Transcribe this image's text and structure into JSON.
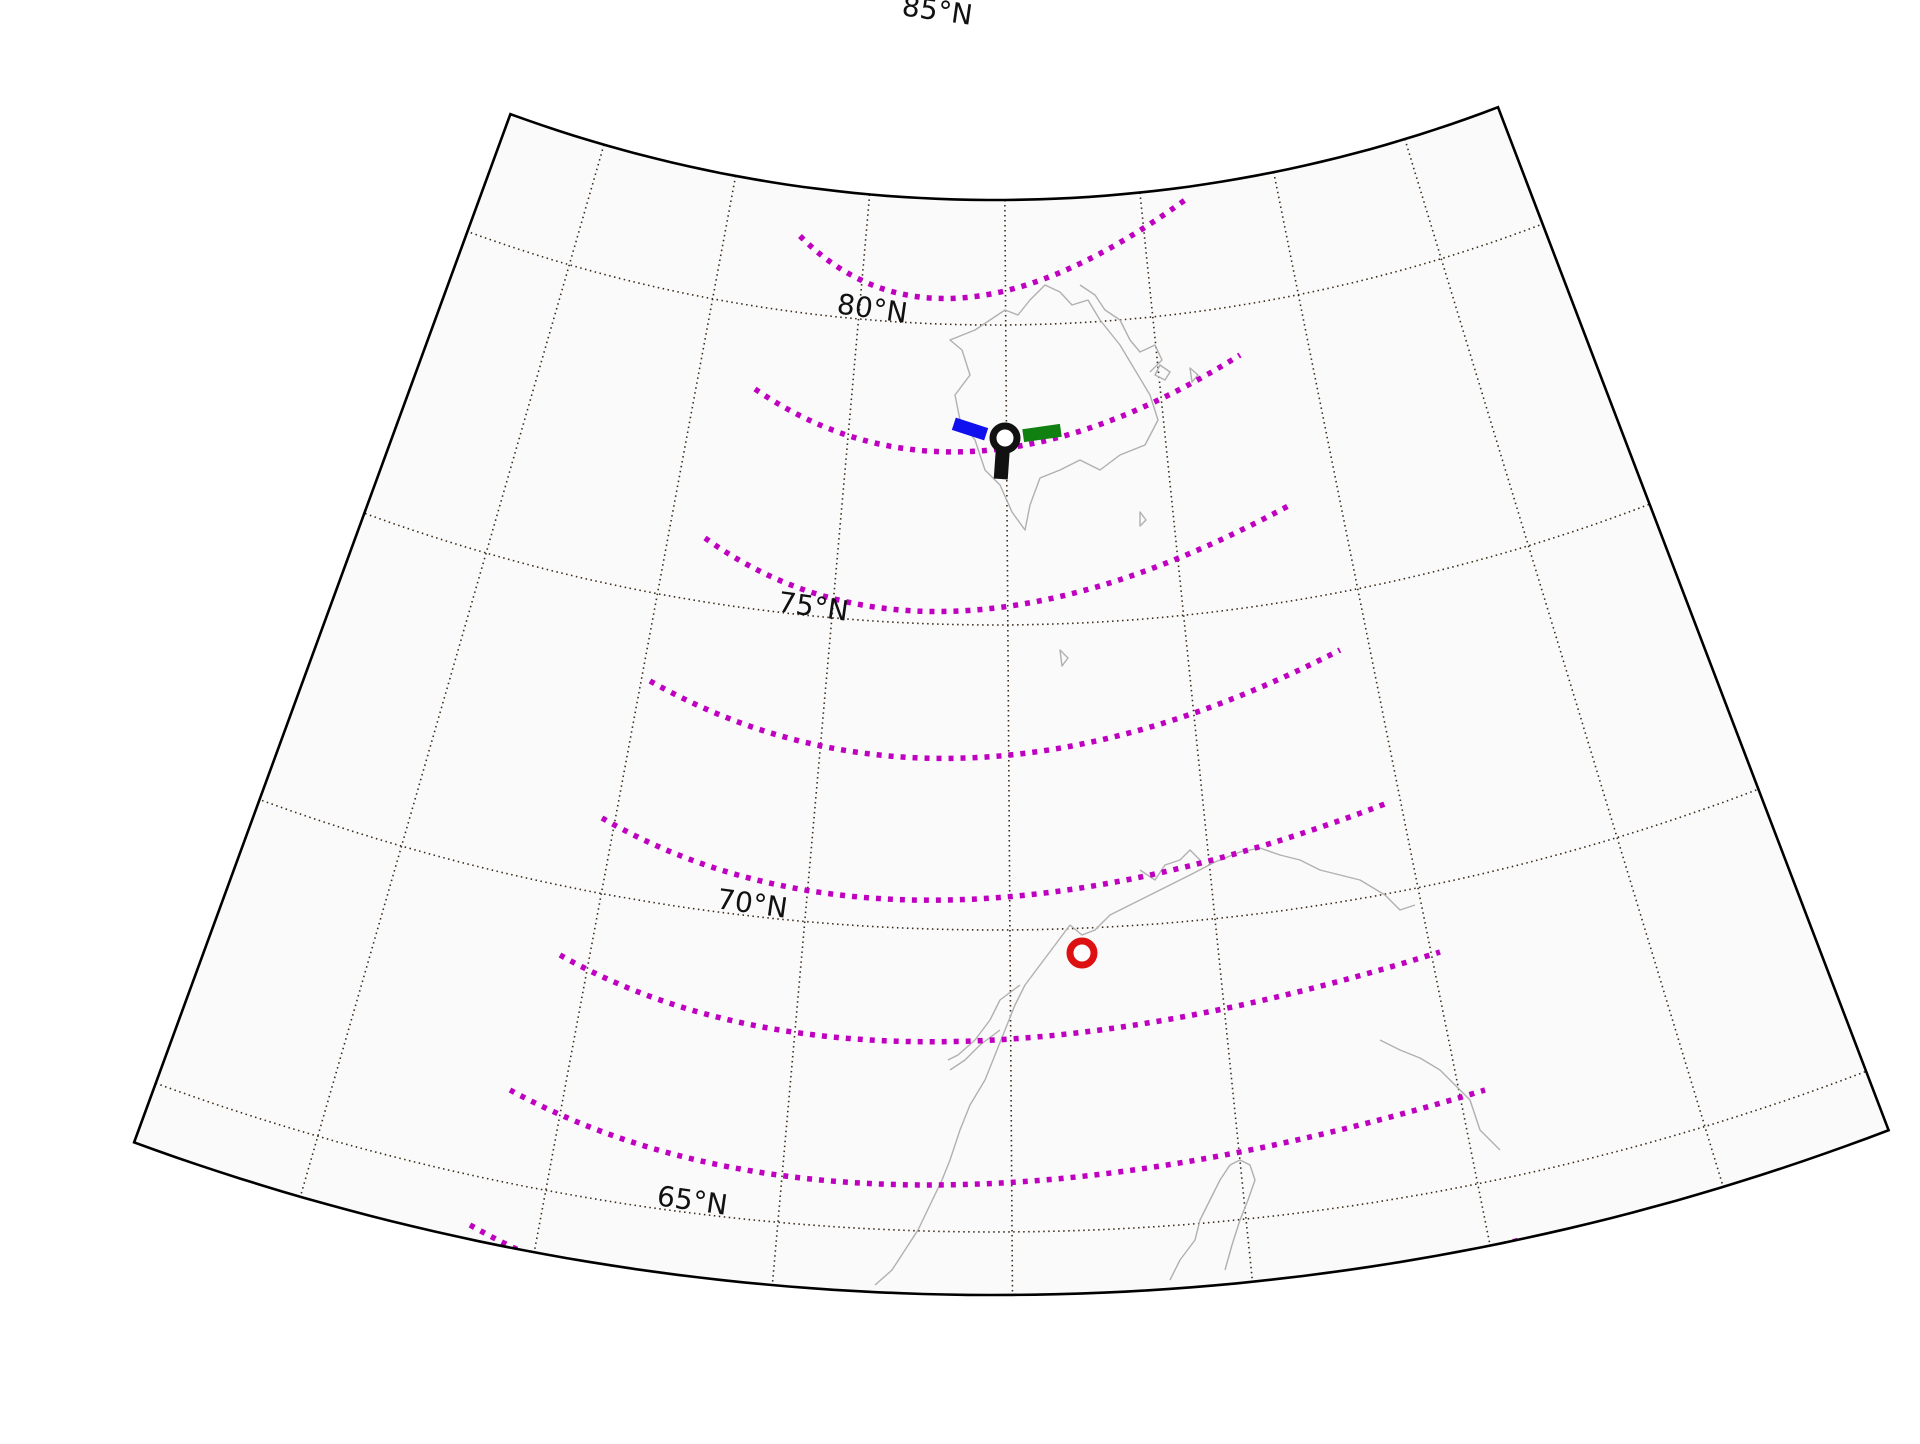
{
  "map": {
    "projection": "conic",
    "background": "#ffffff",
    "land_fill": "#fafafa",
    "frame_color": "#000000",
    "coastline_color": "#b0b0b0",
    "graticule_color": "#3a2a1a",
    "track_color": "#c000c0",
    "lat_labels": [
      {
        "lat": 85,
        "text": "85°N"
      },
      {
        "lat": 80,
        "text": "80°N"
      },
      {
        "lat": 75,
        "text": "75°N"
      },
      {
        "lat": 70,
        "text": "70°N"
      },
      {
        "lat": 65,
        "text": "65°N"
      }
    ],
    "markers": [
      {
        "name": "station-marker-svalbard",
        "color": "#111111",
        "shape": "ring"
      },
      {
        "name": "station-marker-norway",
        "color": "#dd1111",
        "shape": "ring"
      }
    ],
    "arms": [
      {
        "name": "arm-blue",
        "color": "#1010ee"
      },
      {
        "name": "arm-green",
        "color": "#108010"
      },
      {
        "name": "arm-black",
        "color": "#111111"
      }
    ]
  }
}
